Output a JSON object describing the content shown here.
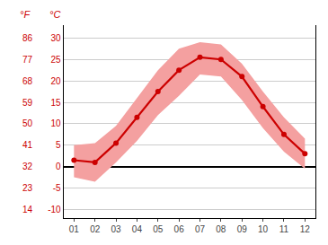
{
  "chart_data": {
    "type": "line",
    "x": [
      1,
      2,
      3,
      4,
      5,
      6,
      7,
      8,
      9,
      10,
      11,
      12
    ],
    "series": [
      {
        "type": "band",
        "color": "#f4a0a0",
        "min": [
          -2.5,
          -3.5,
          1.0,
          6.0,
          12.0,
          16.5,
          21.5,
          21.0,
          15.5,
          9.0,
          3.5,
          -0.5
        ],
        "max": [
          5.0,
          5.5,
          9.5,
          16.0,
          22.5,
          27.5,
          29.0,
          28.5,
          24.0,
          17.5,
          11.5,
          6.5
        ]
      },
      {
        "type": "line",
        "color": "#cc0000",
        "marker": "circle",
        "values": [
          1.5,
          1.0,
          5.5,
          11.5,
          17.5,
          22.5,
          25.5,
          25.0,
          21.0,
          14.0,
          7.5,
          3.0
        ]
      }
    ],
    "xlim": [
      0.5,
      12.5
    ],
    "xticks": [
      {
        "value": 1,
        "label": "01"
      },
      {
        "value": 2,
        "label": "02"
      },
      {
        "value": 3,
        "label": "03"
      },
      {
        "value": 4,
        "label": "04"
      },
      {
        "value": 5,
        "label": "05"
      },
      {
        "value": 6,
        "label": "06"
      },
      {
        "value": 7,
        "label": "07"
      },
      {
        "value": 8,
        "label": "08"
      },
      {
        "value": 9,
        "label": "09"
      },
      {
        "value": 10,
        "label": "10"
      },
      {
        "value": 11,
        "label": "11"
      },
      {
        "value": 12,
        "label": "12"
      }
    ],
    "ylabel": "°C",
    "ylim": [
      -12,
      33
    ],
    "yticks": [
      -10,
      -5,
      0,
      5,
      10,
      15,
      20,
      25,
      30
    ],
    "y2label": "°F",
    "y2lim": [
      10.4,
      91.4
    ],
    "y2ticks": [
      14,
      23,
      32,
      41,
      50,
      59,
      68,
      77,
      86
    ],
    "grid": true
  }
}
